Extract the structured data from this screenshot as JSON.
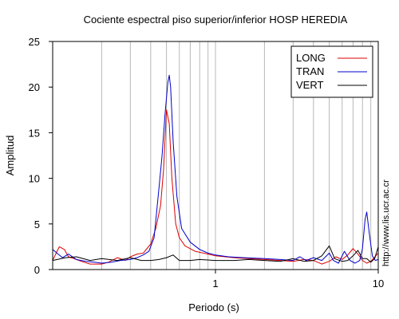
{
  "chart_data": {
    "type": "line",
    "title": "Cociente espectral piso superior/inferior  HOSP HEREDIA",
    "xlabel": "Periodo (s)",
    "ylabel": "Amplitud",
    "xscale": "log",
    "xlim": [
      0.1,
      10
    ],
    "ylim": [
      0,
      25
    ],
    "xticks": [
      {
        "value": 1,
        "label": "1"
      },
      {
        "value": 10,
        "label": "10"
      }
    ],
    "yticks": [
      0,
      5,
      10,
      15,
      20,
      25
    ],
    "grid": "vertical-log",
    "legend_position": "top-right",
    "series": [
      {
        "name": "LONG",
        "color": "#dd0000",
        "points": [
          [
            0.1,
            1.0
          ],
          [
            0.105,
            1.8
          ],
          [
            0.11,
            2.5
          ],
          [
            0.118,
            2.2
          ],
          [
            0.125,
            1.4
          ],
          [
            0.135,
            1.2
          ],
          [
            0.15,
            0.9
          ],
          [
            0.17,
            0.6
          ],
          [
            0.2,
            0.6
          ],
          [
            0.22,
            0.8
          ],
          [
            0.25,
            1.3
          ],
          [
            0.28,
            1.0
          ],
          [
            0.3,
            1.4
          ],
          [
            0.33,
            1.7
          ],
          [
            0.36,
            1.8
          ],
          [
            0.4,
            2.8
          ],
          [
            0.43,
            4.5
          ],
          [
            0.46,
            7.0
          ],
          [
            0.48,
            11.0
          ],
          [
            0.5,
            17.5
          ],
          [
            0.52,
            16.0
          ],
          [
            0.54,
            10.0
          ],
          [
            0.57,
            5.0
          ],
          [
            0.6,
            3.5
          ],
          [
            0.65,
            2.6
          ],
          [
            0.75,
            2.0
          ],
          [
            0.9,
            1.7
          ],
          [
            1.0,
            1.5
          ],
          [
            1.3,
            1.3
          ],
          [
            1.6,
            1.2
          ],
          [
            2.0,
            1.1
          ],
          [
            2.5,
            1.0
          ],
          [
            3.0,
            0.9
          ],
          [
            3.5,
            1.1
          ],
          [
            4.0,
            1.0
          ],
          [
            4.5,
            0.6
          ],
          [
            5.0,
            0.9
          ],
          [
            5.5,
            1.4
          ],
          [
            6.0,
            1.1
          ],
          [
            6.5,
            1.6
          ],
          [
            7.0,
            2.3
          ],
          [
            7.5,
            1.7
          ],
          [
            8.0,
            1.0
          ],
          [
            8.5,
            0.7
          ],
          [
            9.0,
            0.9
          ],
          [
            10.0,
            1.8
          ]
        ]
      },
      {
        "name": "TRAN",
        "color": "#0000cc",
        "points": [
          [
            0.1,
            2.2
          ],
          [
            0.108,
            1.7
          ],
          [
            0.115,
            1.3
          ],
          [
            0.125,
            1.7
          ],
          [
            0.14,
            1.1
          ],
          [
            0.16,
            0.9
          ],
          [
            0.18,
            0.8
          ],
          [
            0.2,
            0.7
          ],
          [
            0.23,
            0.8
          ],
          [
            0.26,
            1.0
          ],
          [
            0.3,
            1.1
          ],
          [
            0.33,
            1.3
          ],
          [
            0.36,
            1.6
          ],
          [
            0.39,
            2.0
          ],
          [
            0.42,
            3.5
          ],
          [
            0.45,
            9.0
          ],
          [
            0.47,
            12.5
          ],
          [
            0.49,
            17.0
          ],
          [
            0.51,
            20.5
          ],
          [
            0.52,
            21.3
          ],
          [
            0.53,
            20.0
          ],
          [
            0.55,
            14.0
          ],
          [
            0.58,
            8.0
          ],
          [
            0.62,
            4.5
          ],
          [
            0.7,
            3.0
          ],
          [
            0.8,
            2.2
          ],
          [
            0.9,
            1.8
          ],
          [
            1.0,
            1.6
          ],
          [
            1.2,
            1.4
          ],
          [
            1.5,
            1.3
          ],
          [
            2.0,
            1.2
          ],
          [
            2.5,
            1.1
          ],
          [
            3.0,
            1.0
          ],
          [
            3.3,
            1.4
          ],
          [
            3.6,
            1.0
          ],
          [
            4.0,
            1.3
          ],
          [
            4.5,
            1.0
          ],
          [
            5.0,
            1.8
          ],
          [
            5.3,
            1.0
          ],
          [
            5.7,
            0.7
          ],
          [
            6.2,
            2.0
          ],
          [
            6.7,
            1.0
          ],
          [
            7.2,
            0.7
          ],
          [
            7.7,
            1.0
          ],
          [
            8.0,
            2.3
          ],
          [
            8.3,
            5.5
          ],
          [
            8.5,
            6.3
          ],
          [
            8.8,
            4.0
          ],
          [
            9.2,
            1.5
          ],
          [
            9.6,
            1.0
          ],
          [
            10.0,
            1.1
          ]
        ]
      },
      {
        "name": "VERT",
        "color": "#000000",
        "points": [
          [
            0.1,
            1.0
          ],
          [
            0.12,
            1.3
          ],
          [
            0.14,
            1.4
          ],
          [
            0.17,
            1.0
          ],
          [
            0.2,
            1.2
          ],
          [
            0.25,
            1.0
          ],
          [
            0.3,
            1.3
          ],
          [
            0.35,
            1.0
          ],
          [
            0.4,
            1.0
          ],
          [
            0.45,
            1.1
          ],
          [
            0.5,
            1.3
          ],
          [
            0.55,
            1.6
          ],
          [
            0.6,
            1.0
          ],
          [
            0.7,
            1.0
          ],
          [
            0.8,
            1.1
          ],
          [
            1.0,
            1.0
          ],
          [
            1.3,
            1.0
          ],
          [
            1.6,
            1.1
          ],
          [
            2.0,
            1.0
          ],
          [
            2.5,
            0.9
          ],
          [
            3.0,
            1.2
          ],
          [
            3.5,
            0.9
          ],
          [
            4.0,
            1.0
          ],
          [
            4.5,
            1.5
          ],
          [
            5.0,
            2.6
          ],
          [
            5.4,
            1.2
          ],
          [
            6.0,
            0.9
          ],
          [
            6.5,
            1.0
          ],
          [
            7.0,
            1.5
          ],
          [
            7.5,
            2.1
          ],
          [
            8.0,
            1.2
          ],
          [
            8.5,
            1.2
          ],
          [
            9.0,
            0.8
          ],
          [
            9.5,
            1.2
          ],
          [
            10.0,
            2.5
          ]
        ]
      }
    ]
  },
  "side_text": "http://www.lis.ucr.ac.cr"
}
